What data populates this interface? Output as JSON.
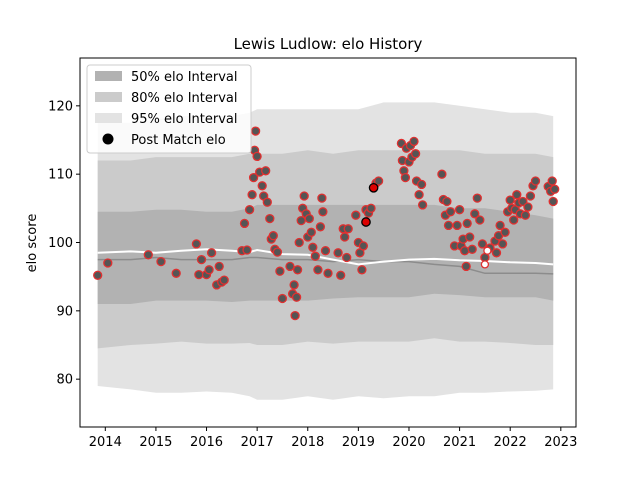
{
  "chart_data": {
    "type": "scatter",
    "title": "Lewis Ludlow: elo History",
    "xlabel": "",
    "ylabel": "elo score",
    "xlim": [
      2013.5,
      2023.3
    ],
    "ylim": [
      73,
      127
    ],
    "xticks": [
      2014,
      2015,
      2016,
      2017,
      2018,
      2019,
      2020,
      2021,
      2022,
      2023
    ],
    "yticks": [
      80,
      90,
      100,
      110,
      120
    ],
    "grid": false,
    "legend_position": "upper-left",
    "legend": [
      {
        "label": "50% elo Interval",
        "kind": "patch",
        "color": "#b2b2b2"
      },
      {
        "label": "80% elo Interval",
        "kind": "patch",
        "color": "#cbcbcb"
      },
      {
        "label": "95% elo Interval",
        "kind": "patch",
        "color": "#e3e3e3"
      },
      {
        "label": "Post Match elo",
        "kind": "marker",
        "color": "#000000"
      }
    ],
    "colors": {
      "band_95": "#e3e3e3",
      "band_80": "#cbcbcb",
      "band_50": "#b2b2b2",
      "median_line": "#8c8c8c",
      "mean_line": "#ffffff",
      "point_face": "#555555",
      "point_edge": "#e03030",
      "highlight_face": "#dd0000",
      "highlight_edge": "#000000"
    },
    "bands": {
      "x": [
        2013.85,
        2014.5,
        2015.0,
        2015.5,
        2016.0,
        2016.5,
        2016.85,
        2017.0,
        2017.5,
        2018.0,
        2018.5,
        2019.0,
        2019.5,
        2020.0,
        2020.5,
        2021.0,
        2021.5,
        2022.0,
        2022.5,
        2022.85
      ],
      "p95_lo": [
        79,
        78.5,
        78,
        78,
        78.2,
        78,
        77.5,
        77,
        77,
        77.5,
        77,
        77.5,
        77.2,
        77.5,
        77.5,
        78,
        78,
        78.2,
        78.3,
        78.5
      ],
      "p95_hi": [
        117.5,
        117.5,
        118,
        118.5,
        118.5,
        118.5,
        119,
        119.5,
        119.5,
        119.5,
        119.5,
        119.5,
        120.5,
        120.5,
        120.5,
        120,
        119.5,
        119,
        119,
        118.5
      ],
      "p80_lo": [
        84.5,
        85,
        85.2,
        85.5,
        85.2,
        85.2,
        85.3,
        85,
        85,
        85.5,
        85.2,
        85.5,
        85.5,
        85.5,
        86,
        85.5,
        85.5,
        85.3,
        85,
        85
      ],
      "p80_hi": [
        112,
        112,
        112.5,
        112.5,
        112.5,
        112.5,
        113,
        113,
        113,
        113.5,
        113,
        113.5,
        113.5,
        113.5,
        113.5,
        113.5,
        113,
        113,
        113,
        112.5
      ],
      "p50_lo": [
        91,
        91,
        91.5,
        91.5,
        91.5,
        91.3,
        91.5,
        91.5,
        91.5,
        91.5,
        91.8,
        92,
        92,
        92,
        92.5,
        92.3,
        92,
        92,
        92,
        91.5
      ],
      "p50_hi": [
        104.5,
        104.5,
        104.8,
        104.8,
        104.5,
        104.5,
        105,
        105.5,
        105.5,
        105.5,
        105.5,
        105.5,
        105.5,
        105.5,
        105.5,
        105,
        105,
        104.5,
        104,
        103.5
      ],
      "median": [
        97.5,
        97.5,
        97.8,
        97.5,
        97.5,
        97.5,
        97.8,
        97.8,
        97.5,
        97.5,
        97.2,
        97.5,
        97.2,
        97.2,
        96.8,
        96.5,
        95.5,
        95.5,
        95.5,
        95.4
      ],
      "mean": [
        98.5,
        98.7,
        98.5,
        98.8,
        99.0,
        98.8,
        98.6,
        98.9,
        98.3,
        98.2,
        97.5,
        96.8,
        97.2,
        97.5,
        97.6,
        97.4,
        97.3,
        97.1,
        97.0,
        96.8
      ]
    },
    "points": [
      {
        "x": 2013.85,
        "y": 95.2
      },
      {
        "x": 2014.05,
        "y": 97.0
      },
      {
        "x": 2014.85,
        "y": 98.2
      },
      {
        "x": 2015.1,
        "y": 97.2
      },
      {
        "x": 2015.4,
        "y": 95.5
      },
      {
        "x": 2015.8,
        "y": 99.8
      },
      {
        "x": 2015.85,
        "y": 95.3
      },
      {
        "x": 2015.9,
        "y": 97.5
      },
      {
        "x": 2016.0,
        "y": 95.3
      },
      {
        "x": 2016.05,
        "y": 96.0
      },
      {
        "x": 2016.1,
        "y": 98.5
      },
      {
        "x": 2016.2,
        "y": 93.8
      },
      {
        "x": 2016.25,
        "y": 96.5
      },
      {
        "x": 2016.3,
        "y": 94.2
      },
      {
        "x": 2016.35,
        "y": 94.5
      },
      {
        "x": 2016.7,
        "y": 98.8
      },
      {
        "x": 2016.75,
        "y": 102.8
      },
      {
        "x": 2016.8,
        "y": 98.9
      },
      {
        "x": 2016.85,
        "y": 104.8
      },
      {
        "x": 2016.9,
        "y": 107.0
      },
      {
        "x": 2016.93,
        "y": 109.5
      },
      {
        "x": 2016.95,
        "y": 113.5
      },
      {
        "x": 2016.97,
        "y": 116.3
      },
      {
        "x": 2017.0,
        "y": 112.6
      },
      {
        "x": 2017.05,
        "y": 110.3
      },
      {
        "x": 2017.1,
        "y": 108.3
      },
      {
        "x": 2017.13,
        "y": 106.8
      },
      {
        "x": 2017.17,
        "y": 110.5
      },
      {
        "x": 2017.2,
        "y": 105.9
      },
      {
        "x": 2017.25,
        "y": 103.5
      },
      {
        "x": 2017.28,
        "y": 100.5
      },
      {
        "x": 2017.32,
        "y": 101.0
      },
      {
        "x": 2017.35,
        "y": 99.0
      },
      {
        "x": 2017.4,
        "y": 98.6
      },
      {
        "x": 2017.45,
        "y": 95.8
      },
      {
        "x": 2017.5,
        "y": 91.8
      },
      {
        "x": 2017.65,
        "y": 96.5
      },
      {
        "x": 2017.7,
        "y": 92.5
      },
      {
        "x": 2017.73,
        "y": 93.8
      },
      {
        "x": 2017.75,
        "y": 89.3
      },
      {
        "x": 2017.78,
        "y": 92.0
      },
      {
        "x": 2017.8,
        "y": 96.0
      },
      {
        "x": 2017.83,
        "y": 100.0
      },
      {
        "x": 2017.87,
        "y": 103.2
      },
      {
        "x": 2017.9,
        "y": 105.0
      },
      {
        "x": 2017.93,
        "y": 106.8
      },
      {
        "x": 2017.97,
        "y": 104.2
      },
      {
        "x": 2018.0,
        "y": 100.8
      },
      {
        "x": 2018.03,
        "y": 103.5
      },
      {
        "x": 2018.07,
        "y": 101.5
      },
      {
        "x": 2018.1,
        "y": 99.3
      },
      {
        "x": 2018.15,
        "y": 98.0
      },
      {
        "x": 2018.2,
        "y": 96.0
      },
      {
        "x": 2018.25,
        "y": 102.3
      },
      {
        "x": 2018.28,
        "y": 106.5
      },
      {
        "x": 2018.3,
        "y": 104.5
      },
      {
        "x": 2018.35,
        "y": 98.8
      },
      {
        "x": 2018.4,
        "y": 95.5
      },
      {
        "x": 2018.6,
        "y": 98.5
      },
      {
        "x": 2018.65,
        "y": 95.2
      },
      {
        "x": 2018.7,
        "y": 102.0
      },
      {
        "x": 2018.73,
        "y": 100.8
      },
      {
        "x": 2018.77,
        "y": 97.8
      },
      {
        "x": 2018.8,
        "y": 102.0
      },
      {
        "x": 2018.95,
        "y": 104.0
      },
      {
        "x": 2019.0,
        "y": 100.0
      },
      {
        "x": 2019.03,
        "y": 98.5
      },
      {
        "x": 2019.07,
        "y": 96.0
      },
      {
        "x": 2019.1,
        "y": 99.5
      },
      {
        "x": 2019.15,
        "y": 104.8
      },
      {
        "x": 2019.2,
        "y": 104.3
      },
      {
        "x": 2019.25,
        "y": 105.0
      },
      {
        "x": 2019.35,
        "y": 108.7
      },
      {
        "x": 2019.4,
        "y": 109.0
      },
      {
        "x": 2019.85,
        "y": 114.5
      },
      {
        "x": 2019.87,
        "y": 112.0
      },
      {
        "x": 2019.9,
        "y": 110.5
      },
      {
        "x": 2019.93,
        "y": 109.5
      },
      {
        "x": 2019.95,
        "y": 113.8
      },
      {
        "x": 2020.0,
        "y": 111.8
      },
      {
        "x": 2020.03,
        "y": 114.2
      },
      {
        "x": 2020.06,
        "y": 112.5
      },
      {
        "x": 2020.1,
        "y": 114.8
      },
      {
        "x": 2020.13,
        "y": 113.0
      },
      {
        "x": 2020.15,
        "y": 109.0
      },
      {
        "x": 2020.2,
        "y": 107.0
      },
      {
        "x": 2020.25,
        "y": 108.5
      },
      {
        "x": 2020.27,
        "y": 105.5
      },
      {
        "x": 2020.65,
        "y": 110.0
      },
      {
        "x": 2020.68,
        "y": 106.3
      },
      {
        "x": 2020.72,
        "y": 104.0
      },
      {
        "x": 2020.75,
        "y": 106.0
      },
      {
        "x": 2020.78,
        "y": 102.5
      },
      {
        "x": 2020.82,
        "y": 104.5
      },
      {
        "x": 2020.9,
        "y": 99.5
      },
      {
        "x": 2020.95,
        "y": 102.5
      },
      {
        "x": 2021.0,
        "y": 104.8
      },
      {
        "x": 2021.03,
        "y": 99.5
      },
      {
        "x": 2021.07,
        "y": 100.5
      },
      {
        "x": 2021.1,
        "y": 98.8
      },
      {
        "x": 2021.13,
        "y": 96.5
      },
      {
        "x": 2021.15,
        "y": 102.8
      },
      {
        "x": 2021.2,
        "y": 100.8
      },
      {
        "x": 2021.25,
        "y": 99.0
      },
      {
        "x": 2021.3,
        "y": 104.2
      },
      {
        "x": 2021.35,
        "y": 106.5
      },
      {
        "x": 2021.4,
        "y": 103.3
      },
      {
        "x": 2021.45,
        "y": 99.8
      },
      {
        "x": 2021.5,
        "y": 97.8
      },
      {
        "x": 2021.6,
        "y": 99.2
      },
      {
        "x": 2021.7,
        "y": 100.2
      },
      {
        "x": 2021.73,
        "y": 98.5
      },
      {
        "x": 2021.77,
        "y": 101.0
      },
      {
        "x": 2021.8,
        "y": 102.5
      },
      {
        "x": 2021.85,
        "y": 99.8
      },
      {
        "x": 2021.9,
        "y": 101.5
      },
      {
        "x": 2021.95,
        "y": 104.5
      },
      {
        "x": 2022.0,
        "y": 106.2
      },
      {
        "x": 2022.03,
        "y": 105.0
      },
      {
        "x": 2022.07,
        "y": 103.3
      },
      {
        "x": 2022.1,
        "y": 104.8
      },
      {
        "x": 2022.13,
        "y": 107.0
      },
      {
        "x": 2022.17,
        "y": 105.8
      },
      {
        "x": 2022.2,
        "y": 104.2
      },
      {
        "x": 2022.25,
        "y": 106.0
      },
      {
        "x": 2022.3,
        "y": 104.0
      },
      {
        "x": 2022.35,
        "y": 105.2
      },
      {
        "x": 2022.4,
        "y": 106.8
      },
      {
        "x": 2022.45,
        "y": 108.3
      },
      {
        "x": 2022.5,
        "y": 109.0
      },
      {
        "x": 2022.75,
        "y": 108.2
      },
      {
        "x": 2022.8,
        "y": 107.5
      },
      {
        "x": 2022.83,
        "y": 109.0
      },
      {
        "x": 2022.85,
        "y": 106.0
      },
      {
        "x": 2022.88,
        "y": 107.8
      }
    ],
    "highlighted_points": [
      {
        "x": 2019.15,
        "y": 103.0
      },
      {
        "x": 2019.3,
        "y": 108.0
      }
    ],
    "open_points": [
      {
        "x": 2021.5,
        "y": 96.8
      },
      {
        "x": 2021.55,
        "y": 98.8
      }
    ]
  }
}
